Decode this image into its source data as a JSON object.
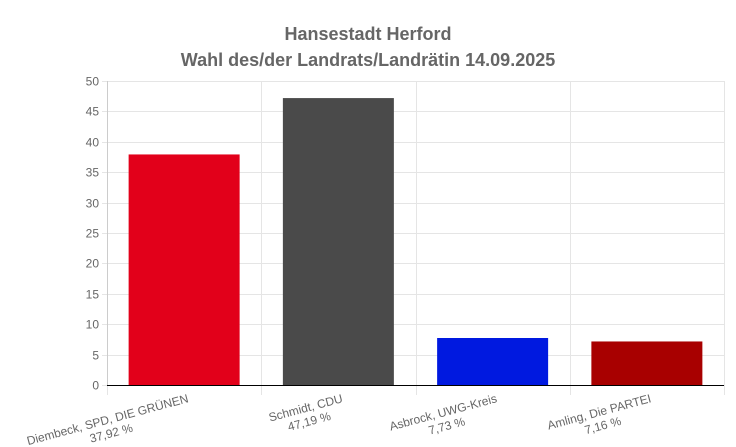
{
  "chart_data": {
    "type": "bar",
    "title_lines": [
      "Hansestadt Herford",
      "Wahl des/der Landrats/Landrätin 14.09.2025"
    ],
    "categories": [
      {
        "name": "Diembeck, SPD, DIE GRÜNEN",
        "pct_label": "37,92 %"
      },
      {
        "name": "Schmidt, CDU",
        "pct_label": "47,19 %"
      },
      {
        "name": "Asbrock, UWG-Kreis",
        "pct_label": "7,73 %"
      },
      {
        "name": "Amling, Die PARTEI",
        "pct_label": "7,16 %"
      }
    ],
    "values": [
      37.92,
      47.19,
      7.73,
      7.16
    ],
    "colors": [
      "#e2001a",
      "#4a4a4a",
      "#0019e0",
      "#a80000"
    ],
    "ylim": [
      0,
      50
    ],
    "yticks": [
      0,
      5,
      10,
      15,
      20,
      25,
      30,
      35,
      40,
      45,
      50
    ],
    "grid": true,
    "xlabel": "",
    "ylabel": ""
  }
}
